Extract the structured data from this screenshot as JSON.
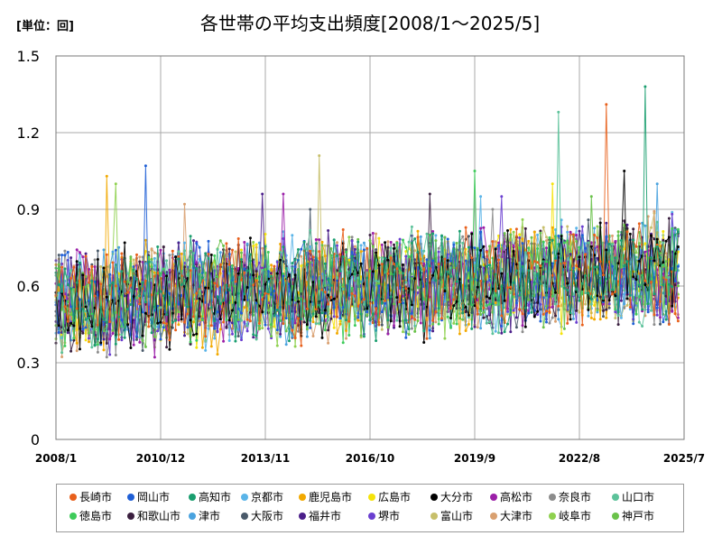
{
  "chart_data": {
    "type": "line",
    "title": "各世帯の平均支出頻度[2008/1～2025/5]",
    "unit_label": "[単位：回]",
    "xlabel": "",
    "ylabel": "",
    "x_range": [
      "2008-01",
      "2025-07"
    ],
    "x_ticks": [
      "2008/1",
      "2010/12",
      "2013/11",
      "2016/10",
      "2019/9",
      "2022/8",
      "2025/7"
    ],
    "ylim": [
      0,
      1.5
    ],
    "y_ticks": [
      "0",
      "0.3",
      "0.6",
      "0.9",
      "1.2",
      "1.5"
    ],
    "grid": true,
    "legend_position": "bottom",
    "series": [
      {
        "name": "長崎市",
        "color": "#e8601c",
        "peak": [
          "2023-05",
          1.31
        ]
      },
      {
        "name": "岡山市",
        "color": "#1f5fd6",
        "peak": [
          "2010-07",
          1.07
        ]
      },
      {
        "name": "高知市",
        "color": "#1a9e6f",
        "peak": [
          "2024-06",
          1.39
        ]
      },
      {
        "name": "京都市",
        "color": "#5ab4e8",
        "peak": [
          "2019-11",
          0.95
        ]
      },
      {
        "name": "鹿児島市",
        "color": "#f2a900",
        "peak": [
          "2009-06",
          1.03
        ]
      },
      {
        "name": "広島市",
        "color": "#f5e30a",
        "peak": [
          "2021-11",
          1.0
        ]
      },
      {
        "name": "大分市",
        "color": "#000000",
        "peak": [
          "2023-11",
          1.05
        ]
      },
      {
        "name": "高松市",
        "color": "#9b1fa8",
        "peak": [
          "2014-05",
          0.96
        ]
      },
      {
        "name": "奈良市",
        "color": "#8c8c8c",
        "peak": [
          "2020-03",
          0.9
        ]
      },
      {
        "name": "山口市",
        "color": "#5cc29a",
        "peak": [
          "2022-01",
          1.28
        ]
      },
      {
        "name": "徳島市",
        "color": "#3ecb5a",
        "peak": [
          "2019-09",
          1.05
        ]
      },
      {
        "name": "和歌山市",
        "color": "#3a1f3f",
        "peak": [
          "2018-06",
          0.96
        ]
      },
      {
        "name": "津市",
        "color": "#4aa3df",
        "peak": [
          "2024-10",
          1.0
        ]
      },
      {
        "name": "大阪市",
        "color": "#4a5a6a",
        "peak": [
          "2015-02",
          0.9
        ]
      },
      {
        "name": "福井市",
        "color": "#4b1f8a",
        "peak": [
          "2013-10",
          0.96
        ]
      },
      {
        "name": "堺市",
        "color": "#6a3fd0",
        "peak": [
          "2020-06",
          0.95
        ]
      },
      {
        "name": "富山市",
        "color": "#c7bf6a",
        "peak": [
          "2015-05",
          1.11
        ]
      },
      {
        "name": "大津市",
        "color": "#d9a070",
        "peak": [
          "2011-08",
          0.92
        ]
      },
      {
        "name": "岐阜市",
        "color": "#8fd14f",
        "peak": [
          "2009-09",
          1.0
        ]
      },
      {
        "name": "神戸市",
        "color": "#6ac24a",
        "peak": [
          "2022-12",
          0.95
        ]
      }
    ]
  }
}
